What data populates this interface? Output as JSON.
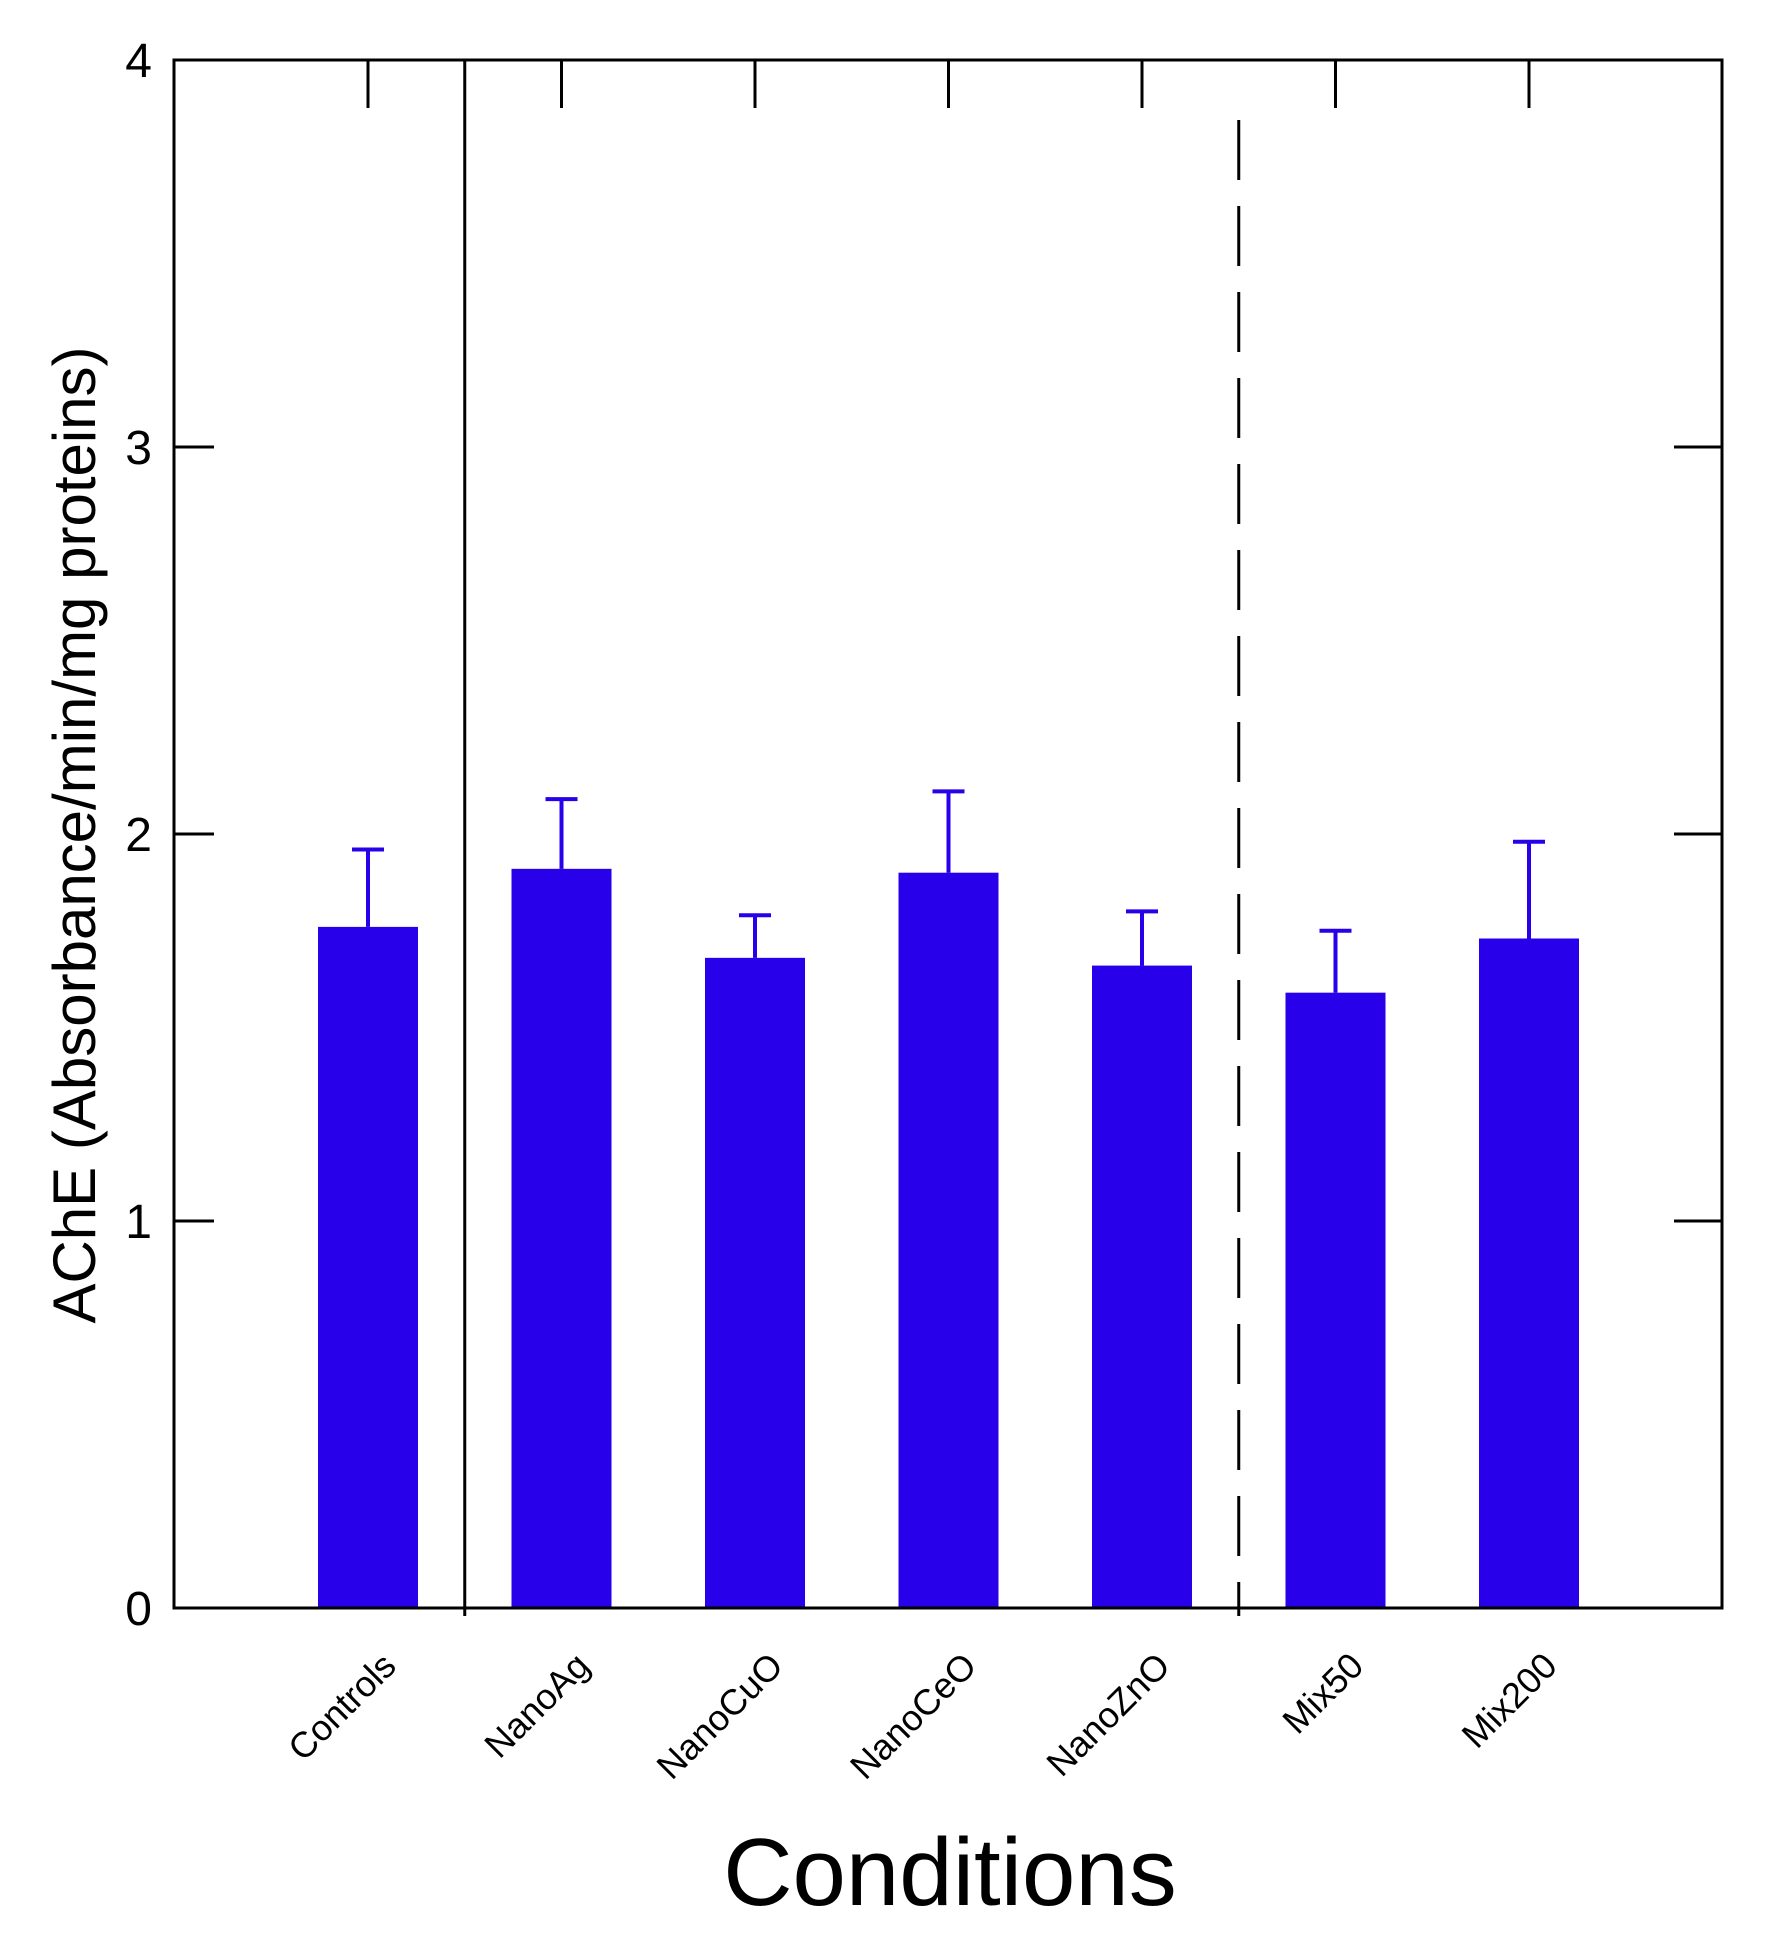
{
  "chart_data": {
    "type": "bar",
    "title": "",
    "xlabel": "Conditions",
    "ylabel": "AChE (Absorbance/min/mg proteins)",
    "ylim": [
      0,
      4
    ],
    "yticks": [
      "0",
      "1",
      "2",
      "3",
      "4"
    ],
    "grid": false,
    "categories": [
      "Controls",
      "NanoAg",
      "NanoCuO",
      "NanoCeO",
      "NanoZnO",
      "Mix50",
      "Mix200"
    ],
    "values": [
      1.76,
      1.91,
      1.68,
      1.9,
      1.66,
      1.59,
      1.73
    ],
    "error": [
      0.2,
      0.18,
      0.11,
      0.21,
      0.14,
      0.16,
      0.25
    ],
    "bar_color": "#2800ea",
    "separators": [
      {
        "after_category": "Controls",
        "style": "solid"
      },
      {
        "after_category": "NanoZnO",
        "style": "dashed"
      }
    ]
  }
}
